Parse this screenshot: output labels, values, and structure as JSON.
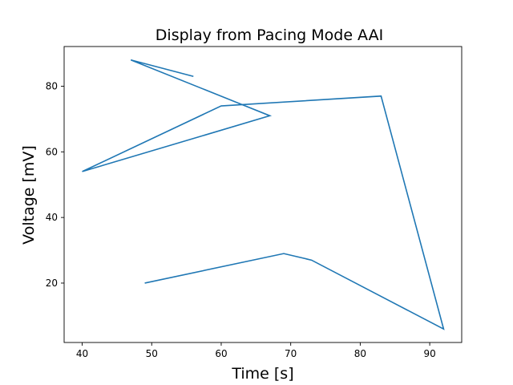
{
  "chart_data": {
    "type": "line",
    "title": "Display from Pacing Mode AAI",
    "xlabel": "Time [s]",
    "ylabel": "Voltage [mV]",
    "xlim": [
      37.4,
      94.6
    ],
    "ylim": [
      1.9,
      92.1
    ],
    "grid": false,
    "x_ticks": [
      40,
      50,
      60,
      70,
      80,
      90
    ],
    "y_ticks": [
      20,
      40,
      60,
      80
    ],
    "series": [
      {
        "color": "#1f77b4",
        "x": [
          49,
          69,
          73,
          92,
          83,
          60,
          40,
          67,
          47,
          56
        ],
        "y": [
          20,
          29,
          27,
          6,
          77,
          74,
          54,
          71,
          88,
          83
        ]
      }
    ]
  }
}
